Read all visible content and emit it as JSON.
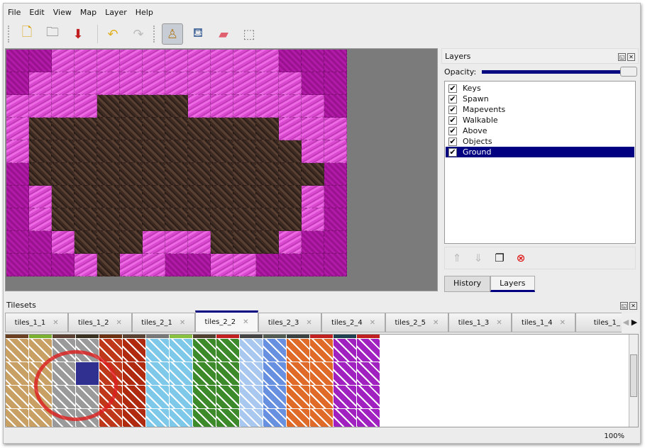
{
  "menu": [
    "File",
    "Edit",
    "View",
    "Map",
    "Layer",
    "Help"
  ],
  "toolbar": [
    {
      "icon": "new-file-icon",
      "glyph": "🗋"
    },
    {
      "icon": "open-folder-icon",
      "glyph": "🗀"
    },
    {
      "icon": "save-icon",
      "glyph": "⬇"
    },
    {
      "icon": "undo-icon",
      "glyph": "↶"
    },
    {
      "icon": "redo-icon",
      "glyph": "↷"
    },
    {
      "icon": "stamp-brush-icon",
      "glyph": "♙",
      "active": true
    },
    {
      "icon": "bucket-fill-icon",
      "glyph": "⛾"
    },
    {
      "icon": "eraser-icon",
      "glyph": "▰"
    },
    {
      "icon": "rect-select-icon",
      "glyph": "⬚"
    }
  ],
  "map": {
    "rows": [
      "MMPPPPPPPPPPMMM",
      "MPPPPPPPPPPPPMM",
      "PPPPDDDDPPPPPPM",
      "PDDDDDDDDDDDPPP",
      "PDDDDDDDDDDDDPP",
      "MDDDDDDDDDDDDDM",
      "MPDDDDDDDDDDDPM",
      "MPDDDDDDDDDDDPM",
      "MMPDDDPPPDDDPMM",
      "MMMPDPPMMPPMMMM"
    ]
  },
  "layers_panel": {
    "title": "Layers",
    "opacity_label": "Opacity:",
    "opacity": 1.0,
    "layers": [
      {
        "name": "Keys",
        "visible": true
      },
      {
        "name": "Spawn",
        "visible": true
      },
      {
        "name": "Mapevents",
        "visible": true
      },
      {
        "name": "Walkable",
        "visible": true
      },
      {
        "name": "Above",
        "visible": true
      },
      {
        "name": "Objects",
        "visible": true
      },
      {
        "name": "Ground",
        "visible": true,
        "selected": true
      }
    ],
    "tabs": [
      "History",
      "Layers"
    ],
    "active_tab": "Layers"
  },
  "tilesets": {
    "title": "Tilesets",
    "tabs": [
      "tiles_1_1",
      "tiles_1_2",
      "tiles_2_1",
      "tiles_2_2",
      "tiles_2_3",
      "tiles_2_4",
      "tiles_2_5",
      "tiles_1_3",
      "tiles_1_4",
      "tiles_1_"
    ],
    "active_tab": "tiles_2_2",
    "column_colors": [
      "#c9a063",
      "#c9a063",
      "#9a9a9a",
      "#9a9a9a",
      "#c0381a",
      "#b02a10",
      "#7ec8ea",
      "#7ec8ea",
      "#3d8a2a",
      "#3d8a2a",
      "#a8c8f0",
      "#6890e0",
      "#e06a28",
      "#e06a28",
      "#a020c0",
      "#a020c0"
    ]
  },
  "status": {
    "zoom": "100%"
  }
}
